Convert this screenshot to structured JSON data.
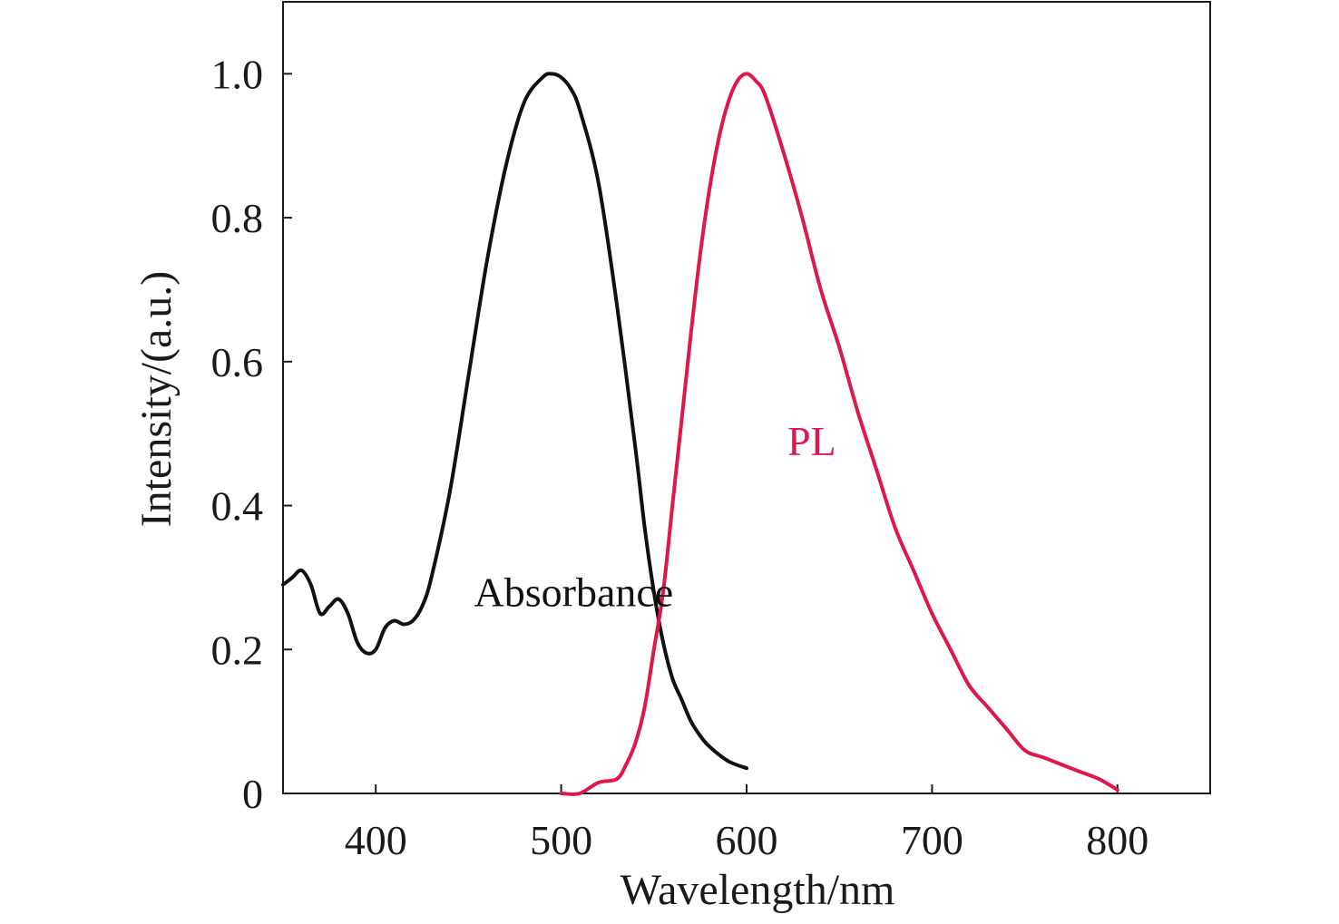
{
  "chart_data": {
    "type": "line",
    "xlabel": "Wavelength/nm",
    "ylabel": "Intensity/(a.u.)",
    "xlim": [
      350,
      850
    ],
    "ylim": [
      0,
      1.1
    ],
    "x_ticks": [
      400,
      500,
      600,
      700,
      800
    ],
    "x_tick_labels": [
      "400",
      "500",
      "600",
      "700",
      "800"
    ],
    "y_ticks": [
      0,
      0.2,
      0.4,
      0.6,
      0.8,
      1.0
    ],
    "y_tick_labels": [
      "0",
      "0.2",
      "0.4",
      "0.6",
      "0.8",
      "1.0"
    ],
    "grid": false,
    "legend": "none",
    "series": [
      {
        "name": "Absorbance",
        "color": "#111111",
        "label_x": 453,
        "label_y": 0.26,
        "x": [
          350,
          355,
          360,
          365,
          370,
          375,
          380,
          385,
          390,
          395,
          400,
          405,
          410,
          415,
          420,
          425,
          430,
          440,
          450,
          460,
          470,
          480,
          490,
          495,
          500,
          505,
          510,
          520,
          530,
          540,
          545,
          550,
          555,
          560,
          565,
          570,
          575,
          580,
          590,
          600
        ],
        "y": [
          0.29,
          0.3,
          0.31,
          0.29,
          0.25,
          0.26,
          0.27,
          0.25,
          0.21,
          0.195,
          0.2,
          0.23,
          0.24,
          0.235,
          0.24,
          0.26,
          0.3,
          0.42,
          0.58,
          0.74,
          0.87,
          0.96,
          0.995,
          1.0,
          0.995,
          0.98,
          0.95,
          0.85,
          0.68,
          0.48,
          0.37,
          0.28,
          0.21,
          0.16,
          0.13,
          0.1,
          0.08,
          0.065,
          0.045,
          0.035
        ]
      },
      {
        "name": "PL",
        "color": "#e0174b",
        "label_x": 622,
        "label_y": 0.47,
        "x": [
          500,
          510,
          520,
          530,
          535,
          540,
          545,
          550,
          555,
          560,
          565,
          570,
          575,
          580,
          585,
          590,
          595,
          600,
          605,
          610,
          620,
          630,
          640,
          650,
          660,
          670,
          680,
          690,
          700,
          710,
          720,
          730,
          740,
          750,
          760,
          770,
          780,
          790,
          800
        ],
        "y": [
          0.0,
          0.0,
          0.015,
          0.02,
          0.04,
          0.07,
          0.12,
          0.2,
          0.28,
          0.4,
          0.52,
          0.64,
          0.75,
          0.84,
          0.91,
          0.96,
          0.99,
          1.0,
          0.99,
          0.97,
          0.89,
          0.8,
          0.7,
          0.62,
          0.53,
          0.45,
          0.37,
          0.31,
          0.25,
          0.2,
          0.15,
          0.12,
          0.09,
          0.06,
          0.05,
          0.04,
          0.03,
          0.02,
          0.005
        ]
      }
    ]
  }
}
